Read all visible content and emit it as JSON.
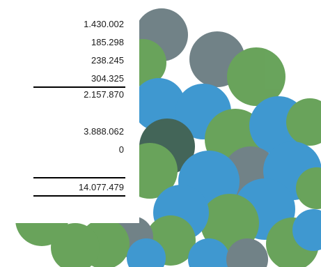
{
  "colors": {
    "green": "#3f8a2e",
    "blue": "#0a7cc4",
    "gray": "#4a5f66",
    "panel": "#ffffff",
    "text": "#1a1a1a"
  },
  "figures": {
    "subtotal_items": [
      "1.430.002",
      "185.298",
      "238.245",
      "304.325"
    ],
    "subtotal": "2.157.870",
    "other_items": [
      "3.888.062",
      "0"
    ],
    "total": "14.077.479"
  }
}
